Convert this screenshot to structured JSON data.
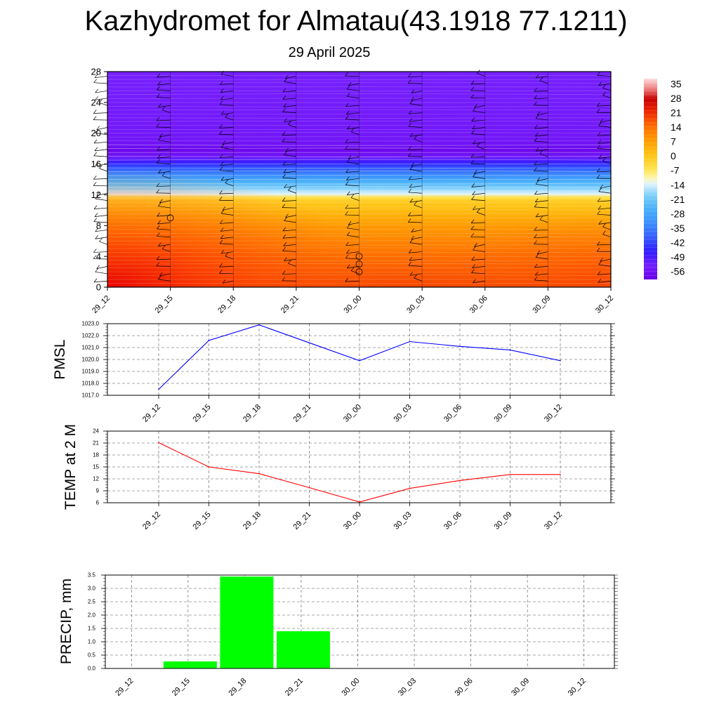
{
  "title": "Kazhydromet for Almatau(43.1918 77.1211)",
  "subtitle": "29 April 2025",
  "colors": {
    "pmsl_line": "#0000ff",
    "temp_line": "#ff0000",
    "precip_bar": "#00ff00"
  },
  "chart_data": [
    {
      "id": "cross-section",
      "type": "heatmap",
      "description_units": "temperature by height",
      "x_tick_labels": [
        "29_12",
        "29_15",
        "29_18",
        "29_21",
        "30_00",
        "30_03",
        "30_06",
        "30_09",
        "30_12"
      ],
      "y_ticks": [
        0,
        4,
        8,
        12,
        16,
        20,
        24,
        28
      ],
      "ylim": [
        0,
        28
      ],
      "colorbar_labels": [
        "35",
        "28",
        "21",
        "14",
        "7",
        "0",
        "-7",
        "-14",
        "-21",
        "-28",
        "-35",
        "-42",
        "-49",
        "-56"
      ],
      "colorbar_range": [
        -63,
        38
      ],
      "temperature_profile": [
        {
          "h": 0,
          "t": 18
        },
        {
          "h": 4,
          "t": 14
        },
        {
          "h": 8,
          "t": 7
        },
        {
          "h": 11.5,
          "t": -3
        },
        {
          "h": 12,
          "t": -14
        },
        {
          "h": 14,
          "t": -30
        },
        {
          "h": 16,
          "t": -47
        },
        {
          "h": 17.5,
          "t": -62
        },
        {
          "h": 19,
          "t": -58
        },
        {
          "h": 28,
          "t": -56
        }
      ]
    },
    {
      "id": "pmsl",
      "type": "line",
      "ylabel": "PMSL",
      "x": [
        "29_12",
        "29_15",
        "29_18",
        "29_21",
        "30_00",
        "30_03",
        "30_06",
        "30_09",
        "30_12"
      ],
      "series": [
        {
          "values": [
            1017.5,
            1021.6,
            1022.9,
            1021.4,
            1019.9,
            1021.5,
            1021.1,
            1020.8,
            1019.9
          ]
        }
      ],
      "y_tick_labels": [
        "1017.0",
        "1018.0",
        "1019.0",
        "1020.0",
        "1021.0",
        "1022.0",
        "1023.0"
      ],
      "ylim": [
        1017,
        1023
      ],
      "grid": true
    },
    {
      "id": "temp",
      "type": "line",
      "ylabel": "TEMP at 2 M",
      "x": [
        "29_12",
        "29_15",
        "29_18",
        "29_21",
        "30_00",
        "30_03",
        "30_06",
        "30_09",
        "30_12"
      ],
      "series": [
        {
          "values": [
            21.1,
            15.0,
            13.3,
            9.8,
            6.2,
            9.6,
            11.6,
            13.1,
            13.1
          ]
        }
      ],
      "y_tick_labels": [
        "6",
        "9",
        "12",
        "15",
        "18",
        "21",
        "24"
      ],
      "ylim": [
        6,
        24
      ],
      "grid": true
    },
    {
      "id": "precip",
      "type": "bar",
      "ylabel": "PRECIP, mm",
      "categories": [
        "29_12",
        "29_15",
        "29_18",
        "29_21",
        "30_00",
        "30_03",
        "30_06",
        "30_09",
        "30_12"
      ],
      "values": [
        0,
        0.27,
        3.45,
        1.4,
        0,
        0,
        0,
        0,
        0
      ],
      "y_tick_labels": [
        "0.0",
        "0.5",
        "1.0",
        "1.5",
        "2.0",
        "2.5",
        "3.0",
        "3.5"
      ],
      "ylim": [
        0,
        3.5
      ],
      "grid": true
    }
  ]
}
